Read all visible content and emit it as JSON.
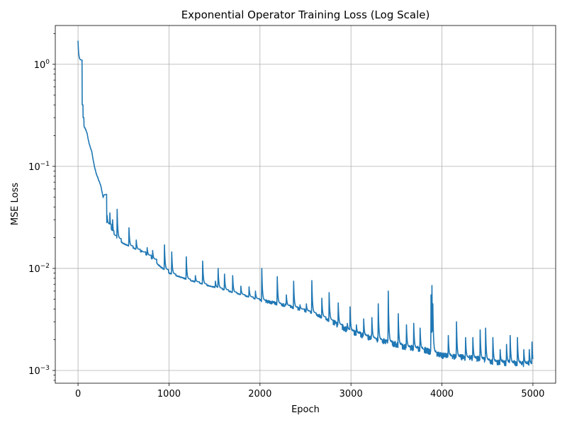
{
  "chart_data": {
    "type": "line",
    "title": "Exponential Operator Training Loss (Log Scale)",
    "xlabel": "Epoch",
    "ylabel": "MSE Loss",
    "xlim": [
      -250,
      5250
    ],
    "ylim": [
      0.00075,
      2.4
    ],
    "yscale": "log",
    "grid": true,
    "x_ticks": [
      0,
      1000,
      2000,
      3000,
      4000,
      5000
    ],
    "x_tick_labels": [
      "0",
      "1000",
      "2000",
      "3000",
      "4000",
      "5000"
    ],
    "y_ticks": [
      0.001,
      0.01,
      0.1,
      1
    ],
    "y_tick_labels": [
      "10",
      "10",
      "10",
      "10"
    ],
    "y_tick_exponents": [
      "−3",
      "−2",
      "−1",
      "0"
    ],
    "series": [
      {
        "color": "#1f77b4",
        "baseline": [
          [
            0,
            1.1
          ],
          [
            5,
            0.55
          ],
          [
            10,
            0.4
          ],
          [
            20,
            0.3
          ],
          [
            40,
            0.27
          ],
          [
            60,
            0.25
          ],
          [
            80,
            0.235
          ],
          [
            100,
            0.21
          ],
          [
            120,
            0.17
          ],
          [
            150,
            0.14
          ],
          [
            180,
            0.1
          ],
          [
            200,
            0.085
          ],
          [
            250,
            0.065
          ],
          [
            280,
            0.048
          ],
          [
            300,
            0.032
          ],
          [
            330,
            0.025
          ],
          [
            380,
            0.021
          ],
          [
            450,
            0.019
          ],
          [
            500,
            0.0175
          ],
          [
            600,
            0.016
          ],
          [
            700,
            0.0145
          ],
          [
            800,
            0.0128
          ],
          [
            900,
            0.0105
          ],
          [
            1000,
            0.009
          ],
          [
            1200,
            0.0078
          ],
          [
            1400,
            0.0069
          ],
          [
            1600,
            0.0062
          ],
          [
            1800,
            0.0055
          ],
          [
            2000,
            0.0049
          ],
          [
            2200,
            0.0045
          ],
          [
            2400,
            0.0041
          ],
          [
            2600,
            0.0036
          ],
          [
            2800,
            0.003
          ],
          [
            3000,
            0.0024
          ],
          [
            3200,
            0.0021
          ],
          [
            3400,
            0.0019
          ],
          [
            3600,
            0.0017
          ],
          [
            3800,
            0.0016
          ],
          [
            4000,
            0.0014
          ],
          [
            4200,
            0.00135
          ],
          [
            4400,
            0.0013
          ],
          [
            4600,
            0.0012
          ],
          [
            4800,
            0.00118
          ],
          [
            5000,
            0.00115
          ]
        ],
        "spikes": [
          [
            0,
            1.7
          ],
          [
            10,
            0.75
          ],
          [
            20,
            0.4
          ],
          [
            270,
            0.045
          ],
          [
            320,
            0.033
          ],
          [
            350,
            0.035
          ],
          [
            380,
            0.03
          ],
          [
            430,
            0.038
          ],
          [
            560,
            0.025
          ],
          [
            640,
            0.019
          ],
          [
            700,
            0.015
          ],
          [
            760,
            0.016
          ],
          [
            820,
            0.015
          ],
          [
            950,
            0.017
          ],
          [
            1030,
            0.0145
          ],
          [
            1190,
            0.013
          ],
          [
            1290,
            0.0085
          ],
          [
            1370,
            0.0118
          ],
          [
            1510,
            0.0075
          ],
          [
            1540,
            0.01
          ],
          [
            1610,
            0.0088
          ],
          [
            1700,
            0.0085
          ],
          [
            1790,
            0.0067
          ],
          [
            1880,
            0.0066
          ],
          [
            1950,
            0.006
          ],
          [
            2020,
            0.01
          ],
          [
            2190,
            0.0083
          ],
          [
            2290,
            0.0055
          ],
          [
            2370,
            0.0075
          ],
          [
            2440,
            0.0044
          ],
          [
            2510,
            0.0045
          ],
          [
            2570,
            0.0076
          ],
          [
            2680,
            0.0051
          ],
          [
            2760,
            0.0058
          ],
          [
            2860,
            0.0046
          ],
          [
            2960,
            0.0029
          ],
          [
            2990,
            0.0042
          ],
          [
            3060,
            0.0028
          ],
          [
            3140,
            0.0032
          ],
          [
            3230,
            0.0033
          ],
          [
            3300,
            0.0045
          ],
          [
            3410,
            0.006
          ],
          [
            3520,
            0.0036
          ],
          [
            3610,
            0.0028
          ],
          [
            3690,
            0.0029
          ],
          [
            3760,
            0.0026
          ],
          [
            3880,
            0.0055
          ],
          [
            3890,
            0.0068
          ],
          [
            3900,
            0.0045
          ],
          [
            4070,
            0.0022
          ],
          [
            4160,
            0.003
          ],
          [
            4260,
            0.0021
          ],
          [
            4340,
            0.0021
          ],
          [
            4420,
            0.0025
          ],
          [
            4480,
            0.0026
          ],
          [
            4560,
            0.0021
          ],
          [
            4640,
            0.0016
          ],
          [
            4710,
            0.0018
          ],
          [
            4750,
            0.0022
          ],
          [
            4830,
            0.0021
          ],
          [
            4900,
            0.0016
          ],
          [
            4960,
            0.0016
          ],
          [
            4990,
            0.0019
          ]
        ]
      }
    ]
  }
}
